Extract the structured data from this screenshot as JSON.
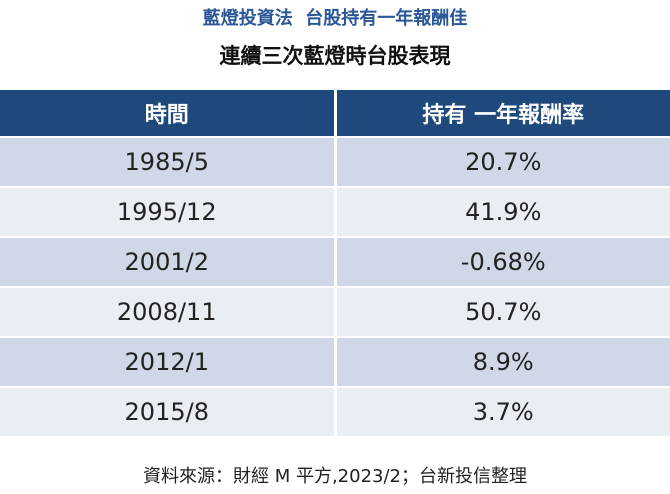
{
  "header": {
    "title": "藍燈投資法  台股持有一年報酬佳",
    "subtitle": "連續三次藍燈時台股表現"
  },
  "table": {
    "columns": [
      "時間",
      "持有 一年報酬率"
    ],
    "rows": [
      [
        "1985/5",
        "20.7%"
      ],
      [
        "1995/12",
        "41.9%"
      ],
      [
        "2001/2",
        "-0.68%"
      ],
      [
        "2008/11",
        "50.7%"
      ],
      [
        "2012/1",
        "8.9%"
      ],
      [
        "2015/8",
        "3.7%"
      ]
    ]
  },
  "footer": {
    "source": "資料來源：財經 M 平方,2023/2；台新投信整理"
  }
}
